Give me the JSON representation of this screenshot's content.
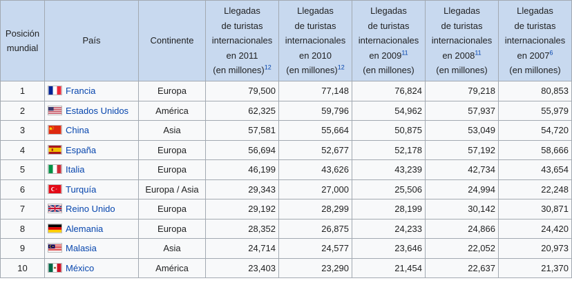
{
  "table": {
    "headers": {
      "rank": [
        "Posición",
        "mundial"
      ],
      "country": "País",
      "continent": "Continente",
      "years": [
        {
          "lines": [
            "Llegadas",
            "de turistas",
            "internacionales",
            "en 2011"
          ],
          "units": "(en millones)",
          "ref": "12",
          "ref_on": "units"
        },
        {
          "lines": [
            "Llegadas",
            "de turistas",
            "internacionales",
            "en 2010"
          ],
          "units": "(en millones)",
          "ref": "12",
          "ref_on": "units"
        },
        {
          "lines": [
            "Llegadas",
            "de turistas",
            "internacionales",
            "en 2009"
          ],
          "units": "(en millones)",
          "ref": "11",
          "ref_on": "year"
        },
        {
          "lines": [
            "Llegadas",
            "de turistas",
            "internacionales",
            "en 2008"
          ],
          "units": "(en millones)",
          "ref": "11",
          "ref_on": "year"
        },
        {
          "lines": [
            "Llegadas",
            "de turistas",
            "internacionales",
            "en 2007"
          ],
          "units": "(en millones)",
          "ref": "6",
          "ref_on": "year"
        }
      ]
    },
    "rows": [
      {
        "rank": "1",
        "country": "Francia",
        "flag": "france-flag-icon",
        "continent": "Europa",
        "values": [
          "79,500",
          "77,148",
          "76,824",
          "79,218",
          "80,853"
        ]
      },
      {
        "rank": "2",
        "country": "Estados Unidos",
        "flag": "usa-flag-icon",
        "continent": "América",
        "values": [
          "62,325",
          "59,796",
          "54,962",
          "57,937",
          "55,979"
        ]
      },
      {
        "rank": "3",
        "country": "China",
        "flag": "china-flag-icon",
        "continent": "Asia",
        "values": [
          "57,581",
          "55,664",
          "50,875",
          "53,049",
          "54,720"
        ]
      },
      {
        "rank": "4",
        "country": "España",
        "flag": "spain-flag-icon",
        "continent": "Europa",
        "values": [
          "56,694",
          "52,677",
          "52,178",
          "57,192",
          "58,666"
        ]
      },
      {
        "rank": "5",
        "country": "Italia",
        "flag": "italy-flag-icon",
        "continent": "Europa",
        "values": [
          "46,199",
          "43,626",
          "43,239",
          "42,734",
          "43,654"
        ]
      },
      {
        "rank": "6",
        "country": "Turquía",
        "flag": "turkey-flag-icon",
        "continent": "Europa / Asia",
        "values": [
          "29,343",
          "27,000",
          "25,506",
          "24,994",
          "22,248"
        ]
      },
      {
        "rank": "7",
        "country": "Reino Unido",
        "flag": "uk-flag-icon",
        "continent": "Europa",
        "values": [
          "29,192",
          "28,299",
          "28,199",
          "30,142",
          "30,871"
        ]
      },
      {
        "rank": "8",
        "country": "Alemania",
        "flag": "germany-flag-icon",
        "continent": "Europa",
        "values": [
          "28,352",
          "26,875",
          "24,233",
          "24,866",
          "24,420"
        ]
      },
      {
        "rank": "9",
        "country": "Malasia",
        "flag": "malaysia-flag-icon",
        "continent": "Asia",
        "values": [
          "24,714",
          "24,577",
          "23,646",
          "22,052",
          "20,973"
        ]
      },
      {
        "rank": "10",
        "country": "México",
        "flag": "mexico-flag-icon",
        "continent": "América",
        "values": [
          "23,403",
          "23,290",
          "21,454",
          "22,637",
          "21,370"
        ]
      }
    ]
  },
  "colors": {
    "header_bg": "#c8d9ef",
    "cell_bg": "#f8f9fa",
    "border": "#a2a9b1",
    "link": "#0645ad"
  }
}
